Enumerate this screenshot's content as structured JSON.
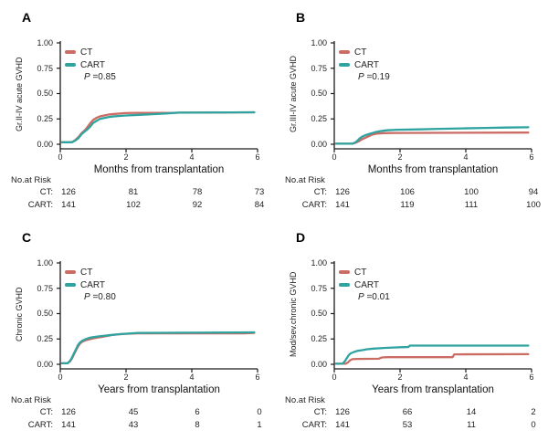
{
  "figure": {
    "background": "#ffffff",
    "text_color": "#1a1a1a",
    "axis_color": "#1a1a1a"
  },
  "colors": {
    "ct": "#CB6C64",
    "cart": "#2EA3A0"
  },
  "legend": {
    "ct": "CT",
    "cart": "CART"
  },
  "risk_header": "No.at Risk",
  "chart_data": [
    {
      "type": "line",
      "panel": "A",
      "ylabel": "Gr.II-IV acute GVHD",
      "xlabel": "Months from transplantation",
      "p": {
        "symbol": "P",
        "text": "=0.85"
      },
      "ylim": [
        0,
        1
      ],
      "xlim": [
        0,
        6
      ],
      "yticks": [
        "1.00",
        "0.75",
        "0.50",
        "0.25",
        "0.00"
      ],
      "xticks": [
        "0",
        "2",
        "4",
        "6"
      ],
      "series": [
        {
          "name": "CT",
          "color": "#CB6C64",
          "points": [
            [
              0.05,
              0.02
            ],
            [
              0.35,
              0.02
            ],
            [
              0.45,
              0.04
            ],
            [
              0.55,
              0.07
            ],
            [
              0.65,
              0.11
            ],
            [
              0.72,
              0.13
            ],
            [
              0.78,
              0.15
            ],
            [
              0.85,
              0.18
            ],
            [
              0.92,
              0.21
            ],
            [
              1.0,
              0.24
            ],
            [
              1.1,
              0.26
            ],
            [
              1.2,
              0.275
            ],
            [
              1.35,
              0.285
            ],
            [
              1.5,
              0.295
            ],
            [
              1.7,
              0.3
            ],
            [
              1.95,
              0.307
            ],
            [
              2.3,
              0.31
            ],
            [
              3.4,
              0.31
            ],
            [
              3.6,
              0.312
            ],
            [
              5.9,
              0.315
            ]
          ]
        },
        {
          "name": "CART",
          "color": "#2EA3A0",
          "points": [
            [
              0.05,
              0.02
            ],
            [
              0.35,
              0.02
            ],
            [
              0.45,
              0.035
            ],
            [
              0.55,
              0.06
            ],
            [
              0.65,
              0.1
            ],
            [
              0.72,
              0.12
            ],
            [
              0.8,
              0.14
            ],
            [
              0.9,
              0.17
            ],
            [
              1.0,
              0.21
            ],
            [
              1.1,
              0.23
            ],
            [
              1.2,
              0.25
            ],
            [
              1.35,
              0.26
            ],
            [
              1.5,
              0.27
            ],
            [
              1.75,
              0.278
            ],
            [
              2.0,
              0.284
            ],
            [
              2.4,
              0.29
            ],
            [
              2.8,
              0.296
            ],
            [
              3.2,
              0.304
            ],
            [
              3.6,
              0.312
            ],
            [
              5.9,
              0.315
            ]
          ]
        }
      ],
      "risk_table": {
        "rows": [
          {
            "label": "CT:",
            "values": [
              "126",
              "81",
              "78",
              "73"
            ]
          },
          {
            "label": "CART:",
            "values": [
              "141",
              "102",
              "92",
              "84"
            ]
          }
        ]
      }
    },
    {
      "type": "line",
      "panel": "B",
      "ylabel": "Gr.III-IV acute GVHD",
      "xlabel": "Months from transplantation",
      "p": {
        "symbol": "P",
        "text": "=0.19"
      },
      "ylim": [
        0,
        1
      ],
      "xlim": [
        0,
        6
      ],
      "yticks": [
        "1.00",
        "0.75",
        "0.50",
        "0.25",
        "0.00"
      ],
      "xticks": [
        "0",
        "2",
        "4",
        "6"
      ],
      "series": [
        {
          "name": "CT",
          "color": "#CB6C64",
          "points": [
            [
              0.05,
              0.005
            ],
            [
              0.55,
              0.005
            ],
            [
              0.65,
              0.015
            ],
            [
              0.75,
              0.03
            ],
            [
              0.85,
              0.05
            ],
            [
              0.95,
              0.065
            ],
            [
              1.05,
              0.08
            ],
            [
              1.15,
              0.095
            ],
            [
              1.3,
              0.105
            ],
            [
              1.5,
              0.11
            ],
            [
              1.9,
              0.112
            ],
            [
              5.9,
              0.115
            ]
          ]
        },
        {
          "name": "CART",
          "color": "#2EA3A0",
          "points": [
            [
              0.05,
              0.005
            ],
            [
              0.55,
              0.005
            ],
            [
              0.65,
              0.02
            ],
            [
              0.72,
              0.04
            ],
            [
              0.78,
              0.06
            ],
            [
              0.85,
              0.075
            ],
            [
              0.95,
              0.09
            ],
            [
              1.05,
              0.1
            ],
            [
              1.15,
              0.11
            ],
            [
              1.25,
              0.12
            ],
            [
              1.4,
              0.13
            ],
            [
              1.6,
              0.138
            ],
            [
              1.9,
              0.143
            ],
            [
              2.6,
              0.147
            ],
            [
              3.2,
              0.152
            ],
            [
              3.9,
              0.157
            ],
            [
              4.6,
              0.161
            ],
            [
              5.2,
              0.165
            ],
            [
              5.9,
              0.168
            ]
          ]
        }
      ],
      "risk_table": {
        "rows": [
          {
            "label": "CT:",
            "values": [
              "126",
              "106",
              "100",
              "94"
            ]
          },
          {
            "label": "CART:",
            "values": [
              "141",
              "119",
              "111",
              "100"
            ]
          }
        ]
      }
    },
    {
      "type": "line",
      "panel": "C",
      "ylabel": "Chronic GVHD",
      "xlabel": "Years from transplantation",
      "p": {
        "symbol": "P",
        "text": "=0.80"
      },
      "ylim": [
        0,
        1
      ],
      "xlim": [
        0,
        6
      ],
      "yticks": [
        "1.00",
        "0.75",
        "0.50",
        "0.25",
        "0.00"
      ],
      "xticks": [
        "0",
        "2",
        "4",
        "6"
      ],
      "series": [
        {
          "name": "CT",
          "color": "#CB6C64",
          "points": [
            [
              0.05,
              0.01
            ],
            [
              0.22,
              0.01
            ],
            [
              0.3,
              0.03
            ],
            [
              0.36,
              0.06
            ],
            [
              0.42,
              0.1
            ],
            [
              0.48,
              0.14
            ],
            [
              0.54,
              0.175
            ],
            [
              0.6,
              0.205
            ],
            [
              0.68,
              0.225
            ],
            [
              0.78,
              0.238
            ],
            [
              0.9,
              0.248
            ],
            [
              1.0,
              0.256
            ],
            [
              1.15,
              0.265
            ],
            [
              1.3,
              0.272
            ],
            [
              1.45,
              0.282
            ],
            [
              1.6,
              0.29
            ],
            [
              1.8,
              0.296
            ],
            [
              2.0,
              0.301
            ],
            [
              2.35,
              0.305
            ],
            [
              5.6,
              0.305
            ],
            [
              5.9,
              0.31
            ]
          ]
        },
        {
          "name": "CART",
          "color": "#2EA3A0",
          "points": [
            [
              0.05,
              0.01
            ],
            [
              0.22,
              0.01
            ],
            [
              0.3,
              0.035
            ],
            [
              0.36,
              0.07
            ],
            [
              0.42,
              0.11
            ],
            [
              0.48,
              0.15
            ],
            [
              0.54,
              0.19
            ],
            [
              0.6,
              0.215
            ],
            [
              0.68,
              0.235
            ],
            [
              0.78,
              0.25
            ],
            [
              0.9,
              0.262
            ],
            [
              1.0,
              0.268
            ],
            [
              1.15,
              0.275
            ],
            [
              1.3,
              0.28
            ],
            [
              1.45,
              0.286
            ],
            [
              1.6,
              0.291
            ],
            [
              1.8,
              0.297
            ],
            [
              2.0,
              0.302
            ],
            [
              2.35,
              0.31
            ],
            [
              5.9,
              0.315
            ]
          ]
        }
      ],
      "risk_table": {
        "rows": [
          {
            "label": "CT:",
            "values": [
              "126",
              "45",
              "6",
              "0"
            ]
          },
          {
            "label": "CART:",
            "values": [
              "141",
              "43",
              "8",
              "1"
            ]
          }
        ]
      }
    },
    {
      "type": "line",
      "panel": "D",
      "ylabel": "Mod/sev.chronic GVHD",
      "xlabel": "Years from transplantation",
      "p": {
        "symbol": "P",
        "text": "=0.01"
      },
      "ylim": [
        0,
        1
      ],
      "xlim": [
        0,
        6
      ],
      "yticks": [
        "1.00",
        "0.75",
        "0.50",
        "0.25",
        "0.00"
      ],
      "xticks": [
        "0",
        "2",
        "4",
        "6"
      ],
      "series": [
        {
          "name": "CT",
          "color": "#CB6C64",
          "points": [
            [
              0.05,
              0.005
            ],
            [
              0.35,
              0.005
            ],
            [
              0.42,
              0.02
            ],
            [
              0.48,
              0.04
            ],
            [
              0.55,
              0.05
            ],
            [
              0.7,
              0.053
            ],
            [
              1.35,
              0.055
            ],
            [
              1.45,
              0.068
            ],
            [
              1.6,
              0.07
            ],
            [
              3.6,
              0.07
            ],
            [
              3.65,
              0.098
            ],
            [
              5.9,
              0.1
            ]
          ]
        },
        {
          "name": "CART",
          "color": "#2EA3A0",
          "points": [
            [
              0.05,
              0.005
            ],
            [
              0.25,
              0.005
            ],
            [
              0.32,
              0.03
            ],
            [
              0.38,
              0.06
            ],
            [
              0.44,
              0.09
            ],
            [
              0.5,
              0.108
            ],
            [
              0.6,
              0.122
            ],
            [
              0.7,
              0.132
            ],
            [
              0.85,
              0.14
            ],
            [
              1.0,
              0.149
            ],
            [
              1.2,
              0.155
            ],
            [
              1.5,
              0.161
            ],
            [
              1.8,
              0.166
            ],
            [
              2.1,
              0.169
            ],
            [
              2.25,
              0.17
            ],
            [
              2.3,
              0.185
            ],
            [
              5.9,
              0.185
            ]
          ]
        }
      ],
      "risk_table": {
        "rows": [
          {
            "label": "CT:",
            "values": [
              "126",
              "66",
              "14",
              "2"
            ]
          },
          {
            "label": "CART:",
            "values": [
              "141",
              "53",
              "11",
              "0"
            ]
          }
        ]
      }
    }
  ]
}
